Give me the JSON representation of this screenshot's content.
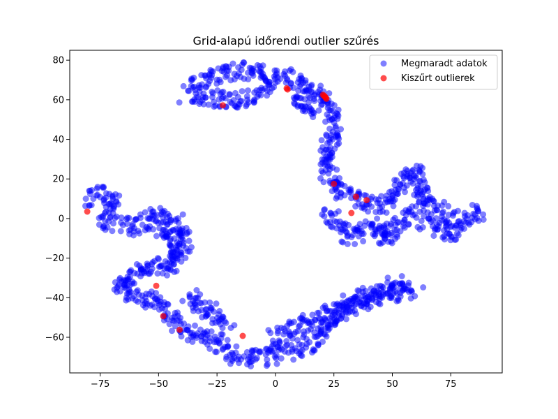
{
  "chart_data": {
    "type": "scatter",
    "title": "Grid-alapú időrendi outlier szűrés",
    "xlabel": "",
    "ylabel": "",
    "xlim": [
      -88,
      97
    ],
    "ylim": [
      -78,
      85
    ],
    "x_ticks": [
      -75,
      -50,
      -25,
      0,
      25,
      50,
      75
    ],
    "x_tick_labels": [
      "−75",
      "−50",
      "−25",
      "0",
      "25",
      "50",
      "75"
    ],
    "y_ticks": [
      -60,
      -40,
      -20,
      0,
      20,
      40,
      60,
      80
    ],
    "y_tick_labels": [
      "−60",
      "−40",
      "−20",
      "0",
      "20",
      "40",
      "60",
      "80"
    ],
    "grid": false,
    "legend_position": "top-right",
    "colors": {
      "kept": "#0000ff",
      "outlier": "#ff0000"
    },
    "series": [
      {
        "name": "Megmaradt adatok",
        "color": "#0000ff",
        "marker": "circle",
        "alpha": 0.5,
        "path_segments": [
          [
            [
              -38,
              63
            ],
            [
              -35,
              66
            ],
            [
              -30,
              70
            ],
            [
              -25,
              72
            ],
            [
              -20,
              74
            ],
            [
              -14,
              75
            ],
            [
              -8,
              75
            ],
            [
              -2,
              73
            ],
            [
              3,
              72
            ],
            [
              8,
              70
            ],
            [
              13,
              67
            ],
            [
              17,
              64
            ],
            [
              20,
              62
            ],
            [
              23,
              57
            ],
            [
              24,
              52
            ],
            [
              25,
              44
            ],
            [
              22,
              38
            ],
            [
              21,
              32
            ],
            [
              22,
              25
            ],
            [
              24,
              19
            ],
            [
              27,
              15
            ],
            [
              30,
              12
            ],
            [
              33,
              10
            ],
            [
              37,
              8
            ],
            [
              41,
              6
            ],
            [
              45,
              7
            ],
            [
              49,
              10
            ],
            [
              52,
              13
            ],
            [
              54,
              17
            ],
            [
              56,
              21
            ],
            [
              59,
              23
            ],
            [
              62,
              22
            ],
            [
              63,
              18
            ],
            [
              62,
              13
            ],
            [
              63,
              9
            ],
            [
              67,
              6
            ],
            [
              70,
              3
            ],
            [
              74,
              1
            ],
            [
              78,
              -1
            ],
            [
              82,
              -2
            ],
            [
              86,
              1
            ],
            [
              87,
              5
            ]
          ],
          [
            [
              -3,
              68
            ],
            [
              -6,
              64
            ],
            [
              -9,
              62
            ],
            [
              -12,
              61
            ],
            [
              -16,
              60
            ],
            [
              -20,
              60
            ],
            [
              -25,
              61
            ],
            [
              -30,
              62
            ],
            [
              -35,
              61
            ]
          ],
          [
            [
              8,
              66
            ],
            [
              10,
              62
            ],
            [
              12,
              58
            ],
            [
              14,
              55
            ],
            [
              17,
              55
            ]
          ],
          [
            [
              22,
              3
            ],
            [
              24,
              -1
            ],
            [
              27,
              -4
            ],
            [
              30,
              -7
            ],
            [
              33,
              -9
            ],
            [
              36,
              -7
            ],
            [
              39,
              -5
            ],
            [
              42,
              -3
            ],
            [
              44,
              -5
            ],
            [
              46,
              -9
            ],
            [
              47,
              -11
            ],
            [
              50,
              -5
            ],
            [
              53,
              -2
            ],
            [
              56,
              -1
            ],
            [
              58,
              2
            ],
            [
              60,
              5
            ]
          ],
          [
            [
              63,
              0
            ],
            [
              66,
              -3
            ],
            [
              69,
              -5
            ],
            [
              72,
              -7
            ],
            [
              76,
              -8
            ],
            [
              79,
              -6
            ]
          ],
          [
            [
              -80,
              8
            ],
            [
              -77,
              11
            ],
            [
              -73,
              12
            ],
            [
              -70,
              11
            ],
            [
              -70,
              7
            ],
            [
              -71,
              2
            ],
            [
              -73,
              -2
            ],
            [
              -73,
              -5
            ]
          ],
          [
            [
              -67,
              -3
            ],
            [
              -62,
              -5
            ],
            [
              -57,
              -3
            ],
            [
              -53,
              0
            ],
            [
              -50,
              3
            ],
            [
              -46,
              1
            ],
            [
              -42,
              -3
            ],
            [
              -39,
              -6
            ],
            [
              -38,
              -12
            ],
            [
              -40,
              -18
            ],
            [
              -43,
              -22
            ],
            [
              -46,
              -25
            ],
            [
              -50,
              -24
            ],
            [
              -55,
              -26
            ],
            [
              -59,
              -28
            ],
            [
              -63,
              -31
            ],
            [
              -67,
              -30
            ],
            [
              -65,
              -36
            ],
            [
              -60,
              -39
            ],
            [
              -55,
              -41
            ],
            [
              -50,
              -43
            ],
            [
              -46,
              -47
            ],
            [
              -43,
              -52
            ],
            [
              -39,
              -55
            ],
            [
              -35,
              -58
            ],
            [
              -30,
              -61
            ],
            [
              -26,
              -63
            ],
            [
              -23,
              -65
            ],
            [
              -20,
              -68
            ],
            [
              -15,
              -70
            ],
            [
              -10,
              -71
            ],
            [
              -5,
              -70
            ],
            [
              0,
              -69
            ],
            [
              5,
              -68
            ],
            [
              10,
              -66
            ],
            [
              15,
              -63
            ],
            [
              18,
              -60
            ],
            [
              22,
              -56
            ],
            [
              25,
              -52
            ],
            [
              28,
              -48
            ],
            [
              32,
              -45
            ],
            [
              37,
              -42
            ],
            [
              42,
              -40
            ],
            [
              47,
              -38
            ],
            [
              52,
              -37
            ],
            [
              57,
              -37
            ],
            [
              61,
              -36
            ]
          ],
          [
            [
              -50,
              -5
            ],
            [
              -46,
              -8
            ],
            [
              -44,
              -12
            ],
            [
              -42,
              -16
            ],
            [
              -42,
              -20
            ]
          ],
          [
            [
              -38,
              -38
            ],
            [
              -35,
              -42
            ],
            [
              -32,
              -45
            ],
            [
              -28,
              -47
            ],
            [
              -25,
              -50
            ],
            [
              -22,
              -53
            ],
            [
              -20,
              -56
            ]
          ],
          [
            [
              -3,
              -60
            ],
            [
              1,
              -58
            ],
            [
              6,
              -56
            ],
            [
              11,
              -54
            ],
            [
              16,
              -52
            ],
            [
              20,
              -50
            ],
            [
              25,
              -47
            ],
            [
              29,
              -44
            ],
            [
              33,
              -42
            ],
            [
              37,
              -40
            ],
            [
              42,
              -37
            ],
            [
              47,
              -35
            ],
            [
              52,
              -33
            ],
            [
              56,
              -34
            ]
          ]
        ]
      },
      {
        "name": "Kiszűrt outlierek",
        "color": "#ff0000",
        "marker": "circle",
        "alpha": 0.7,
        "points": [
          [
            4.8,
            65.8
          ],
          [
            5.2,
            65.2
          ],
          [
            20.3,
            62.5
          ],
          [
            20.8,
            62.0
          ],
          [
            21.2,
            61.5
          ],
          [
            21.5,
            61.0
          ],
          [
            21.8,
            60.5
          ],
          [
            -22.5,
            57.2
          ],
          [
            25.0,
            17.5
          ],
          [
            34.5,
            11.0
          ],
          [
            39.0,
            9.3
          ],
          [
            32.5,
            2.8
          ],
          [
            -80.5,
            3.5
          ],
          [
            -51.0,
            -34.0
          ],
          [
            -48.0,
            -49.3
          ],
          [
            -41.0,
            -56.2
          ],
          [
            -14.0,
            -59.3
          ]
        ]
      }
    ]
  }
}
